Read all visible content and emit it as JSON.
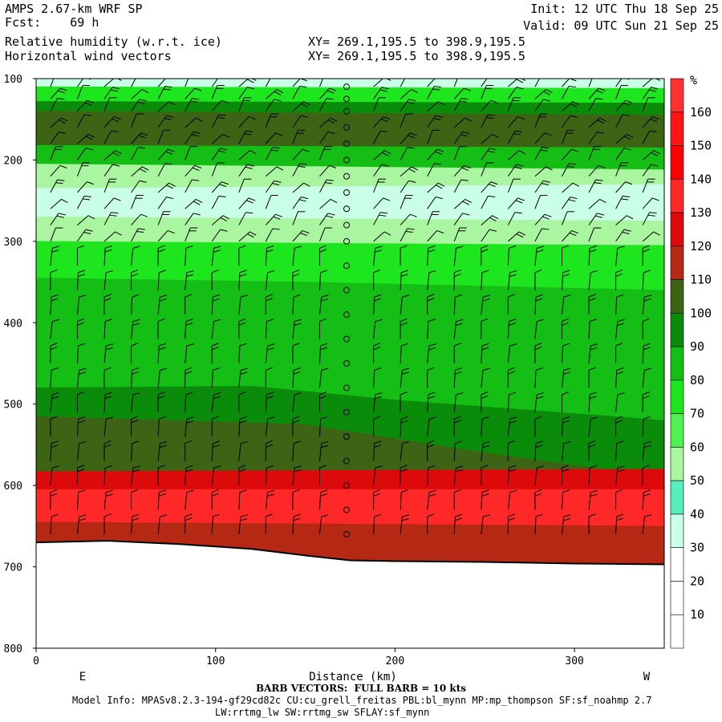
{
  "header": {
    "model": "AMPS 2.67-km WRF SP",
    "fcst_label": "Fcst:",
    "fcst_value": "69 h",
    "field1": "Relative humidity (w.r.t. ice)",
    "field2": "Horizontal wind vectors",
    "init": "Init: 12 UTC Thu 18 Sep 25",
    "valid": "Valid: 09 UTC Sun 21 Sep 25",
    "xy1": "XY= 269.1,195.5 to 398.9,195.5",
    "xy2": "XY= 269.1,195.5 to 398.9,195.5"
  },
  "footer": {
    "barb_note": "BARB VECTORS:  FULL BARB = 10 kts",
    "model_info": "Model Info: MPASv8.2.3-194-gf29cd82c CU:cu_grell_freitas PBL:bl_mynn MP:mp_thompson SF:sf_noahmp 2.7",
    "model_info2": "LW:rrtmg_lw SW:rrtmg_sw SFLAY:sf_mynn"
  },
  "chart_data": {
    "type": "heatmap",
    "xlabel": "Distance (km)",
    "ylabel": "",
    "x_range": [
      0,
      350
    ],
    "y_range": [
      100,
      800
    ],
    "x_ticks": [
      "0",
      "100",
      "200",
      "300"
    ],
    "y_ticks": [
      "100",
      "200",
      "300",
      "400",
      "500",
      "600",
      "700",
      "800"
    ],
    "x_end_labels": {
      "left": "E",
      "right": "W"
    },
    "colorbar": {
      "unit": "%",
      "levels": [
        0,
        10,
        20,
        30,
        40,
        50,
        60,
        70,
        80,
        90,
        100,
        110,
        120,
        130,
        140,
        150,
        160
      ],
      "labels": [
        "10",
        "20",
        "30",
        "40",
        "50",
        "60",
        "70",
        "80",
        "90",
        "100",
        "110",
        "120",
        "130",
        "140",
        "150",
        "160"
      ],
      "colors": [
        "#ffffff",
        "#ffffff",
        "#ffffff",
        "#c8ffe6",
        "#5aeebe",
        "#aaf5a0",
        "#50f050",
        "#1ee61e",
        "#14be14",
        "#0a8c0a",
        "#3c6414",
        "#b42814",
        "#dc0a0a",
        "#ff2828",
        "#ff0000",
        "#ff1414",
        "#ff3232"
      ]
    },
    "terrain_pressure": [
      [
        0,
        670
      ],
      [
        40,
        668
      ],
      [
        80,
        672
      ],
      [
        120,
        678
      ],
      [
        150,
        686
      ],
      [
        175,
        692
      ],
      [
        200,
        693
      ],
      [
        250,
        694
      ],
      [
        300,
        696
      ],
      [
        350,
        697
      ]
    ],
    "layers": [
      {
        "rh": 35,
        "top": [
          [
            0,
            100
          ],
          [
            350,
            100
          ]
        ],
        "bottom": [
          [
            0,
            110
          ],
          [
            350,
            112
          ]
        ]
      },
      {
        "rh": 70,
        "top": [
          [
            0,
            110
          ],
          [
            350,
            112
          ]
        ],
        "bottom": [
          [
            0,
            128
          ],
          [
            350,
            130
          ]
        ]
      },
      {
        "rh": 90,
        "top": [
          [
            0,
            128
          ],
          [
            350,
            130
          ]
        ],
        "bottom": [
          [
            0,
            140
          ],
          [
            350,
            145
          ]
        ]
      },
      {
        "rh": 105,
        "top": [
          [
            0,
            140
          ],
          [
            350,
            145
          ]
        ],
        "bottom": [
          [
            0,
            182
          ],
          [
            350,
            185
          ]
        ]
      },
      {
        "rh": 85,
        "top": [
          [
            0,
            182
          ],
          [
            350,
            185
          ]
        ],
        "bottom": [
          [
            0,
            205
          ],
          [
            350,
            212
          ]
        ]
      },
      {
        "rh": 55,
        "top": [
          [
            0,
            205
          ],
          [
            350,
            212
          ]
        ],
        "bottom": [
          [
            0,
            235
          ],
          [
            350,
            230
          ]
        ]
      },
      {
        "rh": 35,
        "top": [
          [
            0,
            235
          ],
          [
            350,
            230
          ]
        ],
        "bottom": [
          [
            0,
            270
          ],
          [
            350,
            275
          ]
        ]
      },
      {
        "rh": 50,
        "top": [
          [
            0,
            270
          ],
          [
            350,
            275
          ]
        ],
        "bottom": [
          [
            0,
            300
          ],
          [
            350,
            305
          ]
        ]
      },
      {
        "rh": 75,
        "top": [
          [
            0,
            300
          ],
          [
            350,
            305
          ]
        ],
        "bottom": [
          [
            0,
            345
          ],
          [
            150,
            350
          ],
          [
            350,
            360
          ]
        ]
      },
      {
        "rh": 85,
        "top": [
          [
            0,
            345
          ],
          [
            150,
            350
          ],
          [
            350,
            360
          ]
        ],
        "bottom": [
          [
            0,
            480
          ],
          [
            120,
            478
          ],
          [
            200,
            495
          ],
          [
            350,
            520
          ]
        ]
      },
      {
        "rh": 95,
        "top": [
          [
            0,
            480
          ],
          [
            120,
            478
          ],
          [
            200,
            495
          ],
          [
            350,
            520
          ]
        ],
        "bottom": [
          [
            0,
            515
          ],
          [
            150,
            525
          ],
          [
            250,
            560
          ],
          [
            350,
            590
          ]
        ]
      },
      {
        "rh": 105,
        "top": [
          [
            0,
            515
          ],
          [
            150,
            525
          ],
          [
            250,
            560
          ],
          [
            350,
            590
          ]
        ],
        "bottom": [
          [
            0,
            583
          ],
          [
            350,
            580
          ]
        ]
      },
      {
        "rh": 125,
        "top": [
          [
            0,
            583
          ],
          [
            350,
            580
          ]
        ],
        "bottom": [
          [
            0,
            605
          ],
          [
            350,
            605
          ]
        ]
      },
      {
        "rh": 135,
        "top": [
          [
            0,
            605
          ],
          [
            350,
            605
          ]
        ],
        "bottom": [
          [
            0,
            645
          ],
          [
            350,
            650
          ]
        ]
      },
      {
        "rh": 115,
        "top": [
          [
            0,
            645
          ],
          [
            350,
            650
          ]
        ],
        "bottom": [
          [
            0,
            700
          ],
          [
            350,
            700
          ]
        ]
      }
    ],
    "barb_columns_x": [
      8,
      23,
      38,
      53,
      68,
      83,
      98,
      113,
      128,
      143,
      158,
      173,
      188,
      203,
      218,
      233,
      248,
      263,
      278,
      293,
      308,
      323,
      338
    ],
    "barb_levels": [
      110,
      125,
      140,
      160,
      180,
      200,
      220,
      240,
      260,
      280,
      300,
      330,
      360,
      390,
      420,
      450,
      480,
      510,
      540,
      570,
      600,
      630,
      660
    ],
    "calm_column_x": 173
  }
}
